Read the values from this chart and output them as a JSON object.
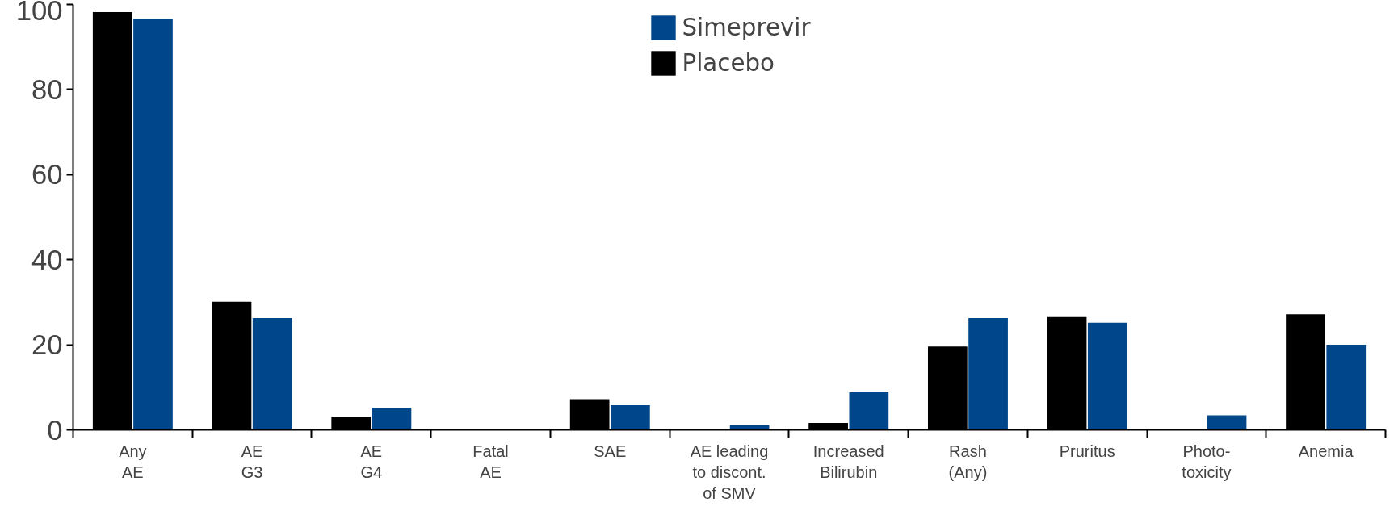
{
  "chart_data": {
    "type": "bar",
    "categories": [
      "Any\nAE",
      "AE\nG3",
      "AE\nG4",
      "Fatal\nAE",
      "SAE",
      "AE leading\nto discont.\nof SMV",
      "Increased\nBilirubin",
      "Rash\n(Any)",
      "Pruritus",
      "Photo-\ntoxicity",
      "Anemia"
    ],
    "series": [
      {
        "name": "Placebo",
        "color": "#000000",
        "values": [
          98.2,
          30.1,
          3.1,
          0,
          7.2,
          0,
          1.6,
          19.6,
          26.5,
          0,
          27.2
        ]
      },
      {
        "name": "Simeprevir",
        "color": "#00468b",
        "values": [
          96.6,
          26.3,
          5.2,
          0,
          5.8,
          1.1,
          8.8,
          26.3,
          25.2,
          3.4,
          20.0
        ]
      }
    ],
    "ylim": [
      0,
      100
    ],
    "yticks": [
      0,
      20,
      40,
      60,
      80,
      100
    ],
    "grid": false,
    "legend": "top"
  }
}
